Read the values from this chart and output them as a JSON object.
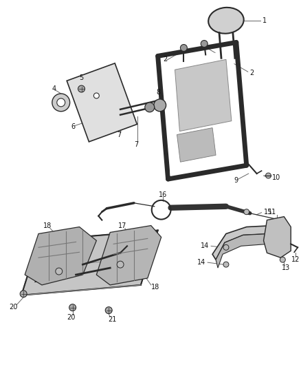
{
  "background_color": "#ffffff",
  "fig_width": 4.38,
  "fig_height": 5.33,
  "dpi": 100,
  "line_color": "#2a2a2a",
  "label_fontsize": 7.0,
  "leader_color": "#555555",
  "part_fill": "#d8d8d8",
  "part_edge": "#2a2a2a",
  "dark_fill": "#888888"
}
